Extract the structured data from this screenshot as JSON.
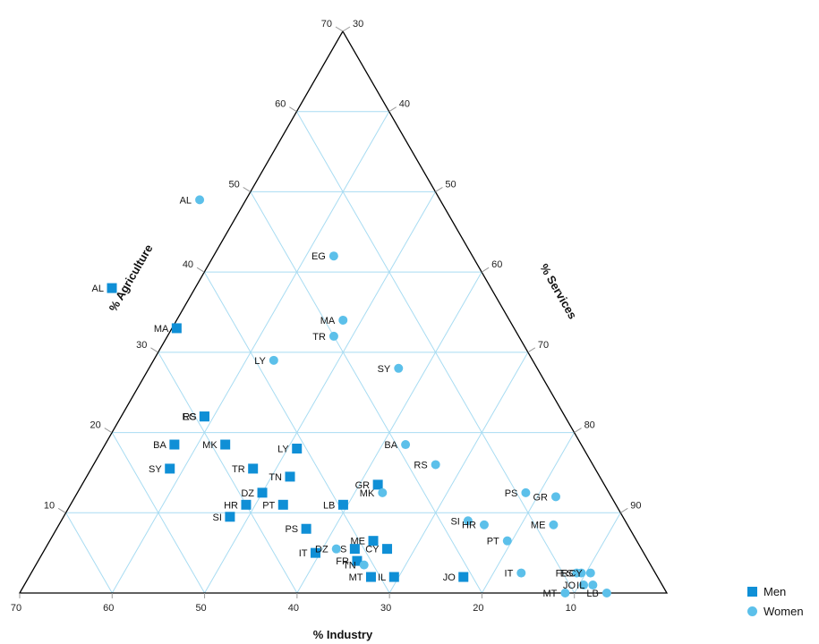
{
  "chart_data": {
    "type": "scatter",
    "subtype": "ternary",
    "axes": {
      "agriculture": {
        "title": "% Agriculture",
        "ticks": [
          10,
          20,
          30,
          40,
          50,
          60,
          70
        ]
      },
      "industry": {
        "title": "% Industry",
        "ticks": [
          70,
          60,
          50,
          40,
          30,
          20,
          10
        ]
      },
      "services": {
        "title": "% Services",
        "ticks": [
          30,
          40,
          50,
          60,
          70,
          80,
          90
        ]
      }
    },
    "grid": true,
    "legend_position": "bottom-right",
    "colors": {
      "men": "#0f8fd6",
      "women": "#5cc0ea",
      "grid": "#a8dcf2",
      "frame": "#000000"
    },
    "series": [
      {
        "name": "Men",
        "marker": "square",
        "points": [
          {
            "label": "AL",
            "agriculture": 38,
            "industry": 41
          },
          {
            "label": "MA",
            "agriculture": 33,
            "industry": 36.5
          },
          {
            "label": "EG",
            "agriculture": 22,
            "industry": 39
          },
          {
            "label": "RS",
            "agriculture": 22,
            "industry": 39
          },
          {
            "label": "BA",
            "agriculture": 18.5,
            "industry": 44
          },
          {
            "label": "MK",
            "agriculture": 18.5,
            "industry": 38.5
          },
          {
            "label": "SY",
            "agriculture": 15.5,
            "industry": 46
          },
          {
            "label": "TR",
            "agriculture": 15.5,
            "industry": 37
          },
          {
            "label": "TN",
            "agriculture": 14.5,
            "industry": 33.5
          },
          {
            "label": "LY",
            "agriculture": 18,
            "industry": 31
          },
          {
            "label": "GR",
            "agriculture": 13.5,
            "industry": 24.5
          },
          {
            "label": "DZ",
            "agriculture": 12.5,
            "industry": 37.5
          },
          {
            "label": "HR",
            "agriculture": 11,
            "industry": 40
          },
          {
            "label": "PT",
            "agriculture": 11,
            "industry": 36
          },
          {
            "label": "LB",
            "agriculture": 11,
            "industry": 29.5
          },
          {
            "label": "SI",
            "agriculture": 9.5,
            "industry": 42.5
          },
          {
            "label": "PS",
            "agriculture": 8,
            "industry": 35
          },
          {
            "label": "ME",
            "agriculture": 6.5,
            "industry": 28.5
          },
          {
            "label": "ES",
            "agriculture": 5.5,
            "industry": 31
          },
          {
            "label": "CY",
            "agriculture": 5.5,
            "industry": 27.5
          },
          {
            "label": "IT",
            "agriculture": 5,
            "industry": 35.5
          },
          {
            "label": "FR",
            "agriculture": 4,
            "industry": 31.5
          },
          {
            "label": "MT",
            "agriculture": 2,
            "industry": 31
          },
          {
            "label": "IL",
            "agriculture": 2,
            "industry": 28.5
          },
          {
            "label": "JO",
            "agriculture": 2,
            "industry": 21
          }
        ]
      },
      {
        "name": "Women",
        "marker": "circle",
        "points": [
          {
            "label": "AL",
            "agriculture": 49,
            "industry": 26
          },
          {
            "label": "EG",
            "agriculture": 42,
            "industry": 15
          },
          {
            "label": "MA",
            "agriculture": 34,
            "industry": 18
          },
          {
            "label": "TR",
            "agriculture": 32,
            "industry": 20
          },
          {
            "label": "LY",
            "agriculture": 29,
            "industry": 28
          },
          {
            "label": "SY",
            "agriculture": 28,
            "industry": 15
          },
          {
            "label": "BA",
            "agriculture": 18.5,
            "industry": 19
          },
          {
            "label": "RS",
            "agriculture": 16,
            "industry": 17
          },
          {
            "label": "MK",
            "agriculture": 12.5,
            "industry": 24.5
          },
          {
            "label": "PS",
            "agriculture": 12.5,
            "industry": 9
          },
          {
            "label": "GR",
            "agriculture": 12,
            "industry": 6
          },
          {
            "label": "SI",
            "agriculture": 9,
            "industry": 17
          },
          {
            "label": "HR",
            "agriculture": 8.5,
            "industry": 15.5
          },
          {
            "label": "ME",
            "agriculture": 8.5,
            "industry": 8
          },
          {
            "label": "PT",
            "agriculture": 6.5,
            "industry": 14
          },
          {
            "label": "DZ",
            "agriculture": 5.5,
            "industry": 33
          },
          {
            "label": "TN",
            "agriculture": 3.5,
            "industry": 31
          },
          {
            "label": "IT",
            "agriculture": 2.5,
            "industry": 14.5
          },
          {
            "label": "FR",
            "agriculture": 2.5,
            "industry": 8.5
          },
          {
            "label": "ES",
            "agriculture": 2.5,
            "industry": 8
          },
          {
            "label": "CY",
            "agriculture": 2.5,
            "industry": 7
          },
          {
            "label": "JO",
            "agriculture": 1,
            "industry": 8.5
          },
          {
            "label": "IL",
            "agriculture": 1,
            "industry": 7.5
          },
          {
            "label": "MT",
            "agriculture": 0,
            "industry": 11
          },
          {
            "label": "LB",
            "agriculture": 0,
            "industry": 6.5
          }
        ]
      }
    ]
  }
}
